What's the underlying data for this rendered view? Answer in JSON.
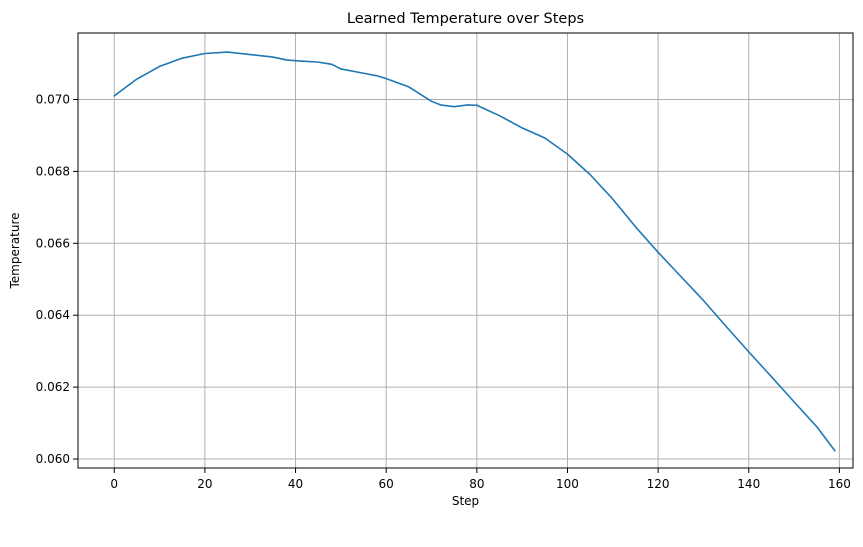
{
  "chart_data": {
    "type": "line",
    "title": "Learned Temperature over Steps",
    "xlabel": "Step",
    "ylabel": "Temperature",
    "xlim": [
      -8,
      163
    ],
    "ylim": [
      0.05975,
      0.07185
    ],
    "grid": true,
    "xticks": [
      0,
      20,
      40,
      60,
      80,
      100,
      120,
      140,
      160
    ],
    "yticks": [
      0.06,
      0.062,
      0.064,
      0.066,
      0.068,
      0.07
    ],
    "ytick_labels": [
      "0.060",
      "0.062",
      "0.064",
      "0.066",
      "0.068",
      "0.070"
    ],
    "color": "#1f77b4",
    "series": [
      {
        "x": [
          0,
          5,
          10,
          15,
          20,
          25,
          30,
          35,
          38,
          40,
          45,
          48,
          50,
          55,
          58,
          60,
          65,
          70,
          72,
          75,
          78,
          80,
          85,
          90,
          95,
          100,
          105,
          110,
          115,
          120,
          125,
          130,
          135,
          140,
          145,
          150,
          155,
          159
        ],
        "y": [
          0.0701,
          0.07057,
          0.07092,
          0.07115,
          0.07128,
          0.07132,
          0.07125,
          0.07118,
          0.0711,
          0.07108,
          0.07104,
          0.07098,
          0.07085,
          0.07073,
          0.07066,
          0.07058,
          0.07035,
          0.06995,
          0.06985,
          0.0698,
          0.06985,
          0.06984,
          0.06955,
          0.06921,
          0.06893,
          0.06848,
          0.06791,
          0.06723,
          0.06646,
          0.06575,
          0.06508,
          0.06441,
          0.06369,
          0.06298,
          0.06229,
          0.06159,
          0.0609,
          0.06023
        ]
      }
    ]
  }
}
